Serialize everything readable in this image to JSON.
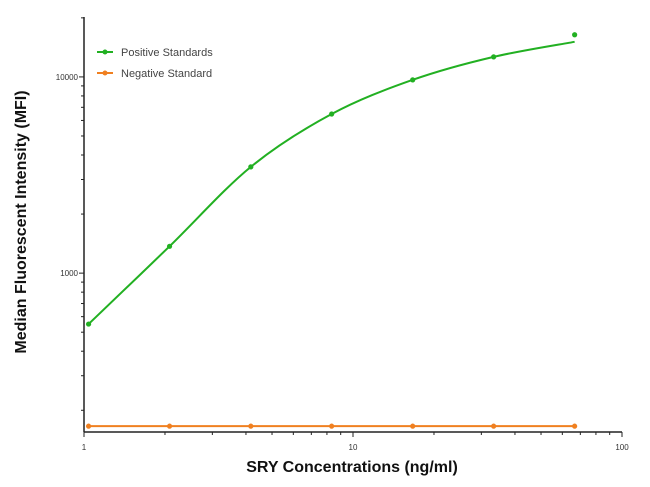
{
  "chart_data": {
    "type": "line",
    "title": "",
    "xlabel": "SRY Concentrations (ng/ml)",
    "ylabel": "Median  Fluorescent Intensity  (MFI)",
    "x_scale": "log",
    "y_scale": "log",
    "xlim": [
      1,
      100
    ],
    "ylim": [
      155,
      20200
    ],
    "x_ticks": [
      "1",
      "10",
      "100"
    ],
    "y_ticks": [
      "1000",
      "10000"
    ],
    "grid": false,
    "legend_position": "top-left",
    "series": [
      {
        "name": "Positive Standards",
        "color": "#22b022",
        "x": [
          1.04,
          2.08,
          4.17,
          8.33,
          16.67,
          33.33,
          66.67
        ],
        "y": [
          550,
          1370,
          3480,
          6470,
          9660,
          12650,
          16400
        ],
        "fit": "smooth curve"
      },
      {
        "name": "Negative Standard",
        "color": "#f08020",
        "x": [
          1.04,
          2.08,
          4.17,
          8.33,
          16.67,
          33.33,
          66.67
        ],
        "y": [
          166,
          166,
          166,
          166,
          166,
          166,
          166
        ]
      }
    ]
  }
}
